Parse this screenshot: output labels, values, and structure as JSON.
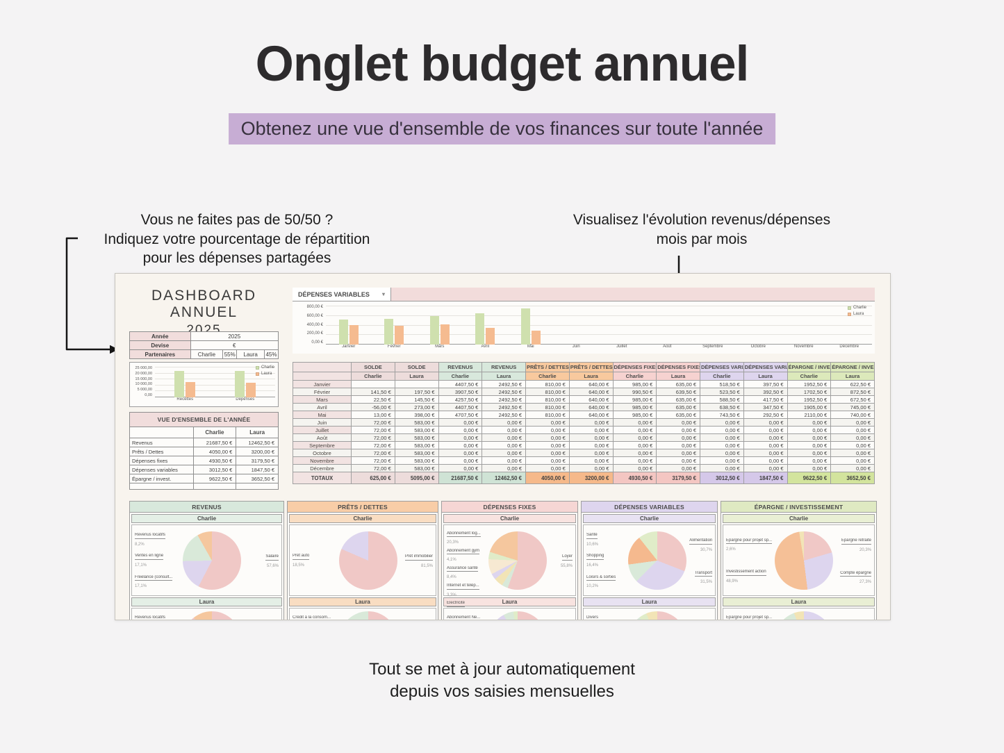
{
  "page": {
    "title": "Onglet budget annuel",
    "subtitle": "Obtenez une vue d'ensemble de vos finances sur toute l'année",
    "annotation_left": {
      "line1": "Vous ne faites pas de 50/50 ?",
      "line2": "Indiquez votre pourcentage de répartition",
      "line3": "pour les dépenses partagées"
    },
    "annotation_right": {
      "line1": "Visualisez l'évolution revenus/dépenses",
      "line2": "mois par mois"
    },
    "footer": {
      "line1": "Tout se met à jour automatiquement",
      "line2": "depuis vos saisies mensuelles"
    }
  },
  "dashboard": {
    "title_line1": "Dashboard annuel",
    "title_line2": "2025",
    "info_table": {
      "annee_label": "Année",
      "annee_value": "2025",
      "devise_label": "Devise",
      "devise_value": "€",
      "partenaires_label": "Partenaires",
      "partner1": "Charlie",
      "partner1_pct": "55%",
      "partner2": "Laura",
      "partner2_pct": "45%"
    },
    "chart_dropdown": {
      "label": "DÉPENSES VARIABLES",
      "caret": "▾"
    },
    "overview_table": {
      "title": "VUE D'ENSEMBLE DE L'ANNÉE",
      "col1": "Charlie",
      "col2": "Laura",
      "rows": [
        {
          "label": "Revenus",
          "charlie": "21687,50 €",
          "laura": "12462,50 €"
        },
        {
          "label": "Prêts / Dettes",
          "charlie": "4050,00 €",
          "laura": "3200,00 €"
        },
        {
          "label": "Dépenses fixes",
          "charlie": "4930,50 €",
          "laura": "3179,50 €"
        },
        {
          "label": "Dépenses variables",
          "charlie": "3012,50 €",
          "laura": "1847,50 €"
        },
        {
          "label": "Épargne / invest.",
          "charlie": "9622,50 €",
          "laura": "3652,50 €"
        }
      ]
    },
    "monthly_table": {
      "columns": [
        {
          "group": "SOLDE",
          "person": "Charlie",
          "class": "solde"
        },
        {
          "group": "SOLDE",
          "person": "Laura",
          "class": "solde"
        },
        {
          "group": "REVENUS",
          "person": "Charlie",
          "class": "revenus"
        },
        {
          "group": "REVENUS",
          "person": "Laura",
          "class": "revenus"
        },
        {
          "group": "PRÊTS / DETTES",
          "person": "Charlie",
          "class": "prets"
        },
        {
          "group": "PRÊTS / DETTES",
          "person": "Laura",
          "class": "prets"
        },
        {
          "group": "DÉPENSES FIXES",
          "person": "Charlie",
          "class": "fixes"
        },
        {
          "group": "DÉPENSES FIXES",
          "person": "Laura",
          "class": "fixes"
        },
        {
          "group": "DÉPENSES VARIABLES",
          "person": "Charlie",
          "class": "variables"
        },
        {
          "group": "DÉPENSES VARIABLES",
          "person": "Laura",
          "class": "variables"
        },
        {
          "group": "ÉPARGNE / INVEST.",
          "person": "Charlie",
          "class": "epargne"
        },
        {
          "group": "ÉPARGNE / INVEST.",
          "person": "Laura",
          "class": "epargne"
        }
      ],
      "months": [
        "Janvier",
        "Février",
        "Mars",
        "Avril",
        "Mai",
        "Juin",
        "Juillet",
        "Août",
        "Septembre",
        "Octobre",
        "Novembre",
        "Décembre"
      ],
      "rows": [
        [
          "",
          "",
          "4407,50 €",
          "2492,50 €",
          "810,00 €",
          "640,00 €",
          "985,00 €",
          "635,00 €",
          "518,50 €",
          "397,50 €",
          "1952,50 €",
          "622,50 €"
        ],
        [
          "141,50 €",
          "197,50 €",
          "3907,50 €",
          "2492,50 €",
          "810,00 €",
          "640,00 €",
          "990,50 €",
          "639,50 €",
          "523,50 €",
          "392,50 €",
          "1702,50 €",
          "872,50 €"
        ],
        [
          "22,50 €",
          "145,50 €",
          "4257,50 €",
          "2492,50 €",
          "810,00 €",
          "640,00 €",
          "985,00 €",
          "635,00 €",
          "588,50 €",
          "417,50 €",
          "1952,50 €",
          "672,50 €"
        ],
        [
          "-56,00 €",
          "273,00 €",
          "4407,50 €",
          "2492,50 €",
          "810,00 €",
          "640,00 €",
          "985,00 €",
          "635,00 €",
          "638,50 €",
          "347,50 €",
          "1905,00 €",
          "745,00 €"
        ],
        [
          "13,00 €",
          "398,00 €",
          "4707,50 €",
          "2492,50 €",
          "810,00 €",
          "640,00 €",
          "985,00 €",
          "635,00 €",
          "743,50 €",
          "292,50 €",
          "2110,00 €",
          "740,00 €"
        ],
        [
          "72,00 €",
          "583,00 €",
          "0,00 €",
          "0,00 €",
          "0,00 €",
          "0,00 €",
          "0,00 €",
          "0,00 €",
          "0,00 €",
          "0,00 €",
          "0,00 €",
          "0,00 €"
        ],
        [
          "72,00 €",
          "583,00 €",
          "0,00 €",
          "0,00 €",
          "0,00 €",
          "0,00 €",
          "0,00 €",
          "0,00 €",
          "0,00 €",
          "0,00 €",
          "0,00 €",
          "0,00 €"
        ],
        [
          "72,00 €",
          "583,00 €",
          "0,00 €",
          "0,00 €",
          "0,00 €",
          "0,00 €",
          "0,00 €",
          "0,00 €",
          "0,00 €",
          "0,00 €",
          "0,00 €",
          "0,00 €"
        ],
        [
          "72,00 €",
          "583,00 €",
          "0,00 €",
          "0,00 €",
          "0,00 €",
          "0,00 €",
          "0,00 €",
          "0,00 €",
          "0,00 €",
          "0,00 €",
          "0,00 €",
          "0,00 €"
        ],
        [
          "72,00 €",
          "583,00 €",
          "0,00 €",
          "0,00 €",
          "0,00 €",
          "0,00 €",
          "0,00 €",
          "0,00 €",
          "0,00 €",
          "0,00 €",
          "0,00 €",
          "0,00 €"
        ],
        [
          "72,00 €",
          "583,00 €",
          "0,00 €",
          "0,00 €",
          "0,00 €",
          "0,00 €",
          "0,00 €",
          "0,00 €",
          "0,00 €",
          "0,00 €",
          "0,00 €",
          "0,00 €"
        ],
        [
          "72,00 €",
          "583,00 €",
          "0,00 €",
          "0,00 €",
          "0,00 €",
          "0,00 €",
          "0,00 €",
          "0,00 €",
          "0,00 €",
          "0,00 €",
          "0,00 €",
          "0,00 €"
        ]
      ],
      "totals_label": "TOTAUX",
      "totals": [
        "625,00 €",
        "5095,00 €",
        "21687,50 €",
        "12462,50 €",
        "4050,00 €",
        "3200,00 €",
        "4930,50 €",
        "3179,50 €",
        "3012,50 €",
        "1847,50 €",
        "9622,50 €",
        "3652,50 €"
      ]
    },
    "pie_panels": [
      {
        "title": "REVENUS",
        "header_color": "#d8e8dc",
        "person1": "Charlie",
        "person2": "Laura",
        "charlie_pie": "pie_revenus_charlie",
        "laura_pie": "pie_revenus_laura"
      },
      {
        "title": "PRÊTS / DETTES",
        "header_color": "#f8cda7",
        "person1": "Charlie",
        "person2": "Laura",
        "charlie_pie": "pie_prets_charlie",
        "laura_pie": "pie_prets_laura"
      },
      {
        "title": "DÉPENSES FIXES",
        "header_color": "#f6d6d4",
        "person1": "Charlie",
        "person2": "Laura",
        "charlie_pie": "pie_fixes_charlie",
        "laura_pie": "pie_fixes_laura"
      },
      {
        "title": "DÉPENSES VARIABLES",
        "header_color": "#ded5ee",
        "person1": "Charlie",
        "person2": "Laura",
        "charlie_pie": "pie_variables_charlie",
        "laura_pie": "pie_variables_laura"
      },
      {
        "title": "ÉPARGNE / INVESTISSEMENT",
        "header_color": "#dfe9c2",
        "person1": "Charlie",
        "person2": "Laura",
        "charlie_pie": "pie_epargne_charlie",
        "laura_pie": "pie_epargne_laura"
      }
    ]
  },
  "chart_data": [
    {
      "id": "monthly_chart",
      "type": "bar",
      "title": "DÉPENSES VARIABLES",
      "categories": [
        "Janvier",
        "Février",
        "Mars",
        "Avril",
        "Mai",
        "Juin",
        "Juillet",
        "Août",
        "Septembre",
        "Octobre",
        "Novembre",
        "Décembre"
      ],
      "series": [
        {
          "name": "Charlie",
          "color": "#cfe0ae",
          "values": [
            518.5,
            523.5,
            588.5,
            638.5,
            743.5,
            0,
            0,
            0,
            0,
            0,
            0,
            0
          ]
        },
        {
          "name": "Laura",
          "color": "#f5bb90",
          "values": [
            397.5,
            392.5,
            417.5,
            347.5,
            292.5,
            0,
            0,
            0,
            0,
            0,
            0,
            0
          ]
        }
      ],
      "ylim": [
        0,
        800
      ],
      "yticks": [
        "800,00 €",
        "600,00 €",
        "400,00 €",
        "200,00 €",
        "0,00 €"
      ],
      "legend_position": "right"
    },
    {
      "id": "overview_chart",
      "type": "bar",
      "title": "",
      "categories": [
        "Recettes",
        "Dépenses"
      ],
      "series": [
        {
          "name": "Charlie",
          "color": "#cfe0ae",
          "values": [
            21687.5,
            21615.5
          ]
        },
        {
          "name": "Laura",
          "color": "#f5bb90",
          "values": [
            12462.5,
            11879.5
          ]
        }
      ],
      "ylim": [
        0,
        25000
      ],
      "yticks": [
        "25 000,00",
        "20 000,00",
        "15 000,00",
        "10 000,00",
        "5 000,00",
        "0,00"
      ],
      "legend_position": "right"
    },
    {
      "id": "pie_revenus_charlie",
      "type": "pie",
      "panel": "REVENUS",
      "person": "Charlie",
      "slices": [
        {
          "label": "Salaire",
          "pct": 57.6,
          "color": "#f0c8c6"
        },
        {
          "label": "Freelance (consult...",
          "pct": 17.1,
          "color": "#ddd5ee"
        },
        {
          "label": "Ventes en ligne",
          "pct": 17.1,
          "color": "#d9e9d9"
        },
        {
          "label": "Revenus locatifs",
          "pct": 8.2,
          "color": "#f5c79e"
        }
      ],
      "labels_left": [
        {
          "name": "Revenus locatifs",
          "pct": "8,2%"
        },
        {
          "name": "Ventes en ligne",
          "pct": "17,1%"
        },
        {
          "name": "Freelance (consult...",
          "pct": "17,1%"
        }
      ],
      "labels_right": [
        {
          "name": "Salaire",
          "pct": "57,6%"
        }
      ]
    },
    {
      "id": "pie_revenus_laura",
      "type": "pie",
      "panel": "REVENUS",
      "person": "Laura",
      "slices": [
        {
          "label": "Salaire",
          "pct": 89.3,
          "color": "#f0c8c6"
        },
        {
          "label": "Revenus locatifs",
          "pct": 10.7,
          "color": "#f5c79e"
        }
      ],
      "labels_left": [
        {
          "name": "Revenus locatifs",
          "pct": "10,7%"
        }
      ],
      "labels_right": []
    },
    {
      "id": "pie_prets_charlie",
      "type": "pie",
      "panel": "PRÊTS / DETTES",
      "person": "Charlie",
      "slices": [
        {
          "label": "Prêt immobilier",
          "pct": 81.5,
          "color": "#f0c8c6"
        },
        {
          "label": "Prêt auto",
          "pct": 18.5,
          "color": "#ddd5ee"
        }
      ],
      "labels_left": [
        {
          "name": "Prêt auto",
          "pct": "18,5%"
        }
      ],
      "labels_right": [
        {
          "name": "Prêt immobilier",
          "pct": "81,5%"
        }
      ]
    },
    {
      "id": "pie_prets_laura",
      "type": "pie",
      "panel": "PRÊTS / DETTES",
      "person": "Laura",
      "slices": [
        {
          "label": "",
          "pct": 76.0,
          "color": "#f0c8c6"
        },
        {
          "label": "",
          "pct": 8.4,
          "color": "#f5c79e"
        },
        {
          "label": "Crédit à la consom...",
          "pct": 15.6,
          "color": "#d9e9d9"
        }
      ],
      "labels_left": [
        {
          "name": "Crédit à la consom...",
          "pct": "15,6%"
        }
      ],
      "labels_right": []
    },
    {
      "id": "pie_fixes_charlie",
      "type": "pie",
      "panel": "DÉPENSES FIXES",
      "person": "Charlie",
      "slices": [
        {
          "label": "Loyer",
          "pct": 55.8,
          "color": "#f0c8c6"
        },
        {
          "label": "Assurance habit...",
          "pct": 3.5,
          "color": "#d9e9d9"
        },
        {
          "label": "Électricité",
          "pct": 5.1,
          "color": "#f2e4b6"
        },
        {
          "label": "Internet et télép...",
          "pct": 3.3,
          "color": "#ddd5ee"
        },
        {
          "label": "Assurance santé",
          "pct": 8.4,
          "color": "#f7e9d2"
        },
        {
          "label": "Abonnement gym",
          "pct": 4.1,
          "color": "#e0ecc8"
        },
        {
          "label": "Abonnement log...",
          "pct": 20.3,
          "color": "#f5c79e"
        }
      ],
      "labels_left": [
        {
          "name": "Abonnement log...",
          "pct": "20,3%"
        },
        {
          "name": "Abonnement gym",
          "pct": "4,1%"
        },
        {
          "name": "Assurance santé",
          "pct": "8,4%"
        },
        {
          "name": "Internet et télép...",
          "pct": "3,3%"
        },
        {
          "name": "Électricité",
          "pct": "5,1%"
        },
        {
          "name": "Assurance habit...",
          "pct": "3,5%"
        }
      ],
      "labels_right": [
        {
          "name": "Loyer",
          "pct": "55,8%"
        }
      ]
    },
    {
      "id": "pie_fixes_laura",
      "type": "pie",
      "panel": "DÉPENSES FIXES",
      "person": "Laura",
      "slices": [
        {
          "label": "Loyer",
          "pct": 49.4,
          "color": "#f0c8c6"
        },
        {
          "label": "",
          "pct": 17.0,
          "color": "#f5c79e"
        },
        {
          "label": "Assurance santé",
          "pct": 10.6,
          "color": "#f7e9d2"
        },
        {
          "label": "",
          "pct": 9.0,
          "color": "#f2e4b6"
        },
        {
          "label": "Internet et télép...",
          "pct": 6.0,
          "color": "#ddd5ee"
        },
        {
          "label": "",
          "pct": 5.6,
          "color": "#d9e9d9"
        },
        {
          "label": "Abonnement Ne...",
          "pct": 2.4,
          "color": "#e0ecc8"
        }
      ],
      "labels_left": [
        {
          "name": "Abonnement Ne...",
          "pct": "2,4%"
        },
        {
          "name": "Assurance santé",
          "pct": "10,6%"
        },
        {
          "name": "Internet et télép...",
          "pct": ""
        }
      ],
      "labels_right": []
    },
    {
      "id": "pie_variables_charlie",
      "type": "pie",
      "panel": "DÉPENSES VARIABLES",
      "person": "Charlie",
      "slices": [
        {
          "label": "Alimentation",
          "pct": 30.7,
          "color": "#f0c8c6"
        },
        {
          "label": "Transport",
          "pct": 31.5,
          "color": "#ddd5ee"
        },
        {
          "label": "Loisirs & sorties",
          "pct": 10.2,
          "color": "#d9e9d9"
        },
        {
          "label": "Shopping",
          "pct": 16.4,
          "color": "#f5b98e"
        },
        {
          "label": "Santé",
          "pct": 10.6,
          "color": "#e0ecc8"
        }
      ],
      "labels_left": [
        {
          "name": "Santé",
          "pct": "10,6%"
        },
        {
          "name": "Shopping",
          "pct": "16,4%"
        },
        {
          "name": "Loisirs & sorties",
          "pct": "10,2%"
        }
      ],
      "labels_right": [
        {
          "name": "Alimentation",
          "pct": "30,7%"
        },
        {
          "name": "Transport",
          "pct": "31,5%"
        }
      ]
    },
    {
      "id": "pie_variables_laura",
      "type": "pie",
      "panel": "DÉPENSES VARIABLES",
      "person": "Laura",
      "slices": [
        {
          "label": "Alimentation",
          "pct": 40.0,
          "color": "#f0c8c6"
        },
        {
          "label": "",
          "pct": 20.0,
          "color": "#ddd5ee"
        },
        {
          "label": "Shopping",
          "pct": 19.5,
          "color": "#f5b98e"
        },
        {
          "label": "",
          "pct": 10.0,
          "color": "#d9e9d9"
        },
        {
          "label": "Santé",
          "pct": 4.3,
          "color": "#e0ecc8"
        },
        {
          "label": "Divers",
          "pct": 6.2,
          "color": "#f2e4b6"
        }
      ],
      "labels_left": [
        {
          "name": "Divers",
          "pct": "6,2%"
        },
        {
          "name": "Santé",
          "pct": "4,3%"
        },
        {
          "name": "Shopping",
          "pct": ""
        }
      ],
      "labels_right": [
        {
          "name": "Alimentation",
          "pct": ""
        }
      ]
    },
    {
      "id": "pie_epargne_charlie",
      "type": "pie",
      "panel": "ÉPARGNE / INVESTISSEMENT",
      "person": "Charlie",
      "slices": [
        {
          "label": "Épargne retraite",
          "pct": 20.3,
          "color": "#f0c8c6"
        },
        {
          "label": "Compte épargne",
          "pct": 27.3,
          "color": "#ddd5ee"
        },
        {
          "label": "Investissement action",
          "pct": 48.9,
          "color": "#f5c097"
        },
        {
          "label": "Épargne pour projet sp...",
          "pct": 2.6,
          "color": "#f2e4b6"
        }
      ],
      "labels_left": [
        {
          "name": "Épargne pour projet sp...",
          "pct": "2,6%"
        },
        {
          "name": "Investissement action",
          "pct": "48,9%"
        }
      ],
      "labels_right": [
        {
          "name": "Épargne retraite",
          "pct": "20,3%"
        },
        {
          "name": "Compte épargne",
          "pct": "27,3%"
        }
      ]
    },
    {
      "id": "pie_epargne_laura",
      "type": "pie",
      "panel": "ÉPARGNE / INVESTISSEMENT",
      "person": "Laura",
      "slices": [
        {
          "label": "",
          "pct": 50.0,
          "color": "#ddd5ee"
        },
        {
          "label": "",
          "pct": 6.5,
          "color": "#f0c8c6"
        },
        {
          "label": "Assurance vie...",
          "pct": 38.0,
          "color": "#d9e9d9"
        },
        {
          "label": "Épargne pour projet sp...",
          "pct": 5.5,
          "color": "#f2e4b6"
        }
      ],
      "labels_left": [
        {
          "name": "Épargne pour projet sp...",
          "pct": "5,5%"
        },
        {
          "name": "Assurance vie...",
          "pct": ""
        }
      ],
      "labels_right": []
    }
  ]
}
